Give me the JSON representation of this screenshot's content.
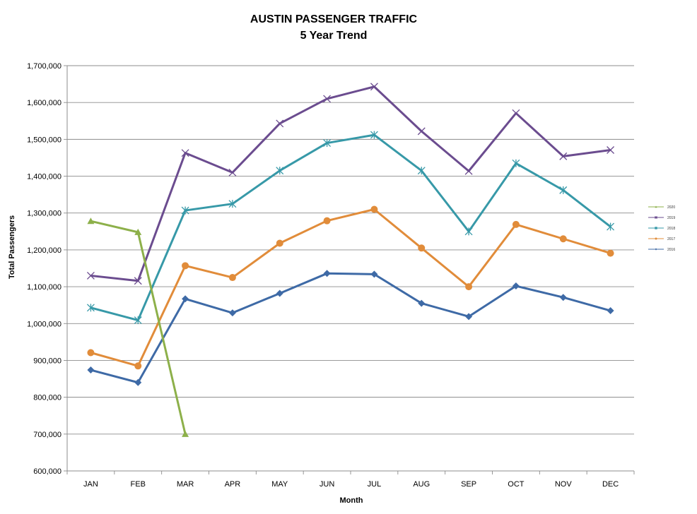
{
  "chart_data": {
    "type": "line",
    "title": "AUSTIN PASSENGER TRAFFIC",
    "subtitle": "5 Year Trend",
    "xlabel": "Month",
    "ylabel": "Total Passengers",
    "categories": [
      "JAN",
      "FEB",
      "MAR",
      "APR",
      "MAY",
      "JUN",
      "JUL",
      "AUG",
      "SEP",
      "OCT",
      "NOV",
      "DEC"
    ],
    "ylim": [
      600000,
      1700000
    ],
    "yticks": [
      600000,
      700000,
      800000,
      900000,
      1000000,
      1100000,
      1200000,
      1300000,
      1400000,
      1500000,
      1600000,
      1700000
    ],
    "ytick_labels": [
      "600,000",
      "700,000",
      "800,000",
      "900,000",
      "1,000,000",
      "1,100,000",
      "1,200,000",
      "1,300,000",
      "1,400,000",
      "1,500,000",
      "1,600,000",
      "1,700,000"
    ],
    "grid": true,
    "legend_position": "right",
    "series": [
      {
        "name": "2020",
        "color": "#8db04a",
        "marker": "triangle",
        "values": [
          1278000,
          1248000,
          700000,
          null,
          null,
          null,
          null,
          null,
          null,
          null,
          null,
          null
        ]
      },
      {
        "name": "2019",
        "color": "#6b4c8f",
        "marker": "x",
        "values": [
          1130000,
          1116000,
          1463000,
          1410000,
          1543000,
          1610000,
          1643000,
          1522000,
          1414000,
          1571000,
          1454000,
          1471000
        ]
      },
      {
        "name": "2018",
        "color": "#3799a8",
        "marker": "star",
        "values": [
          1043000,
          1009000,
          1307000,
          1325000,
          1415000,
          1490000,
          1512000,
          1415000,
          1250000,
          1435000,
          1362000,
          1263000
        ]
      },
      {
        "name": "2017",
        "color": "#e18c3a",
        "marker": "circle",
        "values": [
          921000,
          885000,
          1157000,
          1125000,
          1218000,
          1279000,
          1310000,
          1205000,
          1100000,
          1269000,
          1230000,
          1191000
        ]
      },
      {
        "name": "2016",
        "color": "#3e6aa6",
        "marker": "diamond",
        "values": [
          874000,
          840000,
          1067000,
          1029000,
          1082000,
          1136000,
          1134000,
          1055000,
          1019000,
          1102000,
          1071000,
          1035000
        ]
      }
    ]
  }
}
